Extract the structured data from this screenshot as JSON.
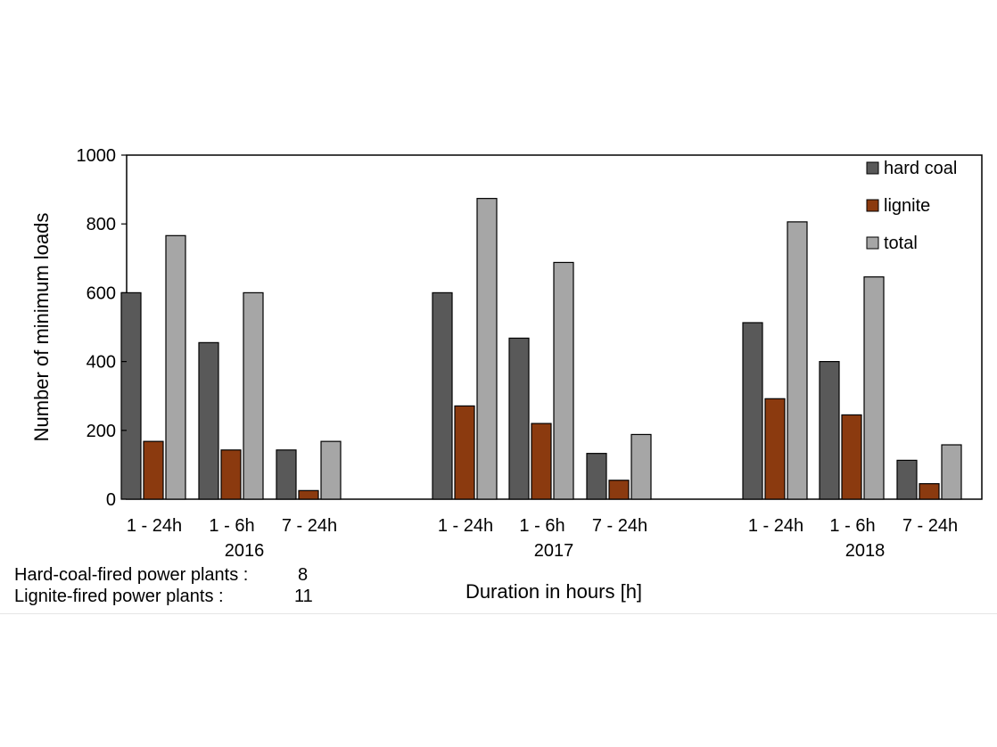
{
  "chart_data": {
    "type": "bar",
    "groups": [
      {
        "year": "2016",
        "categories": [
          "1 - 24h",
          "1 - 6h",
          "7 - 24h"
        ]
      },
      {
        "year": "2017",
        "categories": [
          "1 - 24h",
          "1 - 6h",
          "7 - 24h"
        ]
      },
      {
        "year": "2018",
        "categories": [
          "1 - 24h",
          "1 - 6h",
          "7 - 24h"
        ]
      }
    ],
    "series": [
      {
        "name": "hard coal",
        "color": "#595959",
        "values": [
          600,
          455,
          143,
          600,
          468,
          133,
          513,
          400,
          113
        ]
      },
      {
        "name": "lignite",
        "color": "#8B3A0F",
        "values": [
          168,
          143,
          25,
          271,
          220,
          55,
          292,
          245,
          45
        ]
      },
      {
        "name": "total",
        "color": "#A6A6A6",
        "values": [
          766,
          600,
          168,
          874,
          688,
          188,
          806,
          646,
          158
        ]
      }
    ],
    "xlabel": "Duration  in hours  [h]",
    "ylabel": "Number  of  minimum  loads",
    "ylim": [
      0,
      1000
    ],
    "yticks": [
      "0",
      "200",
      "400",
      "600",
      "800",
      "1000"
    ],
    "legend_position": "top-right",
    "grid": false
  },
  "notes": {
    "hard_coal_label": "Hard-coal-fired power plants :",
    "hard_coal_value": "8",
    "lignite_label": "Lignite-fired power plants :",
    "lignite_value": "11"
  }
}
